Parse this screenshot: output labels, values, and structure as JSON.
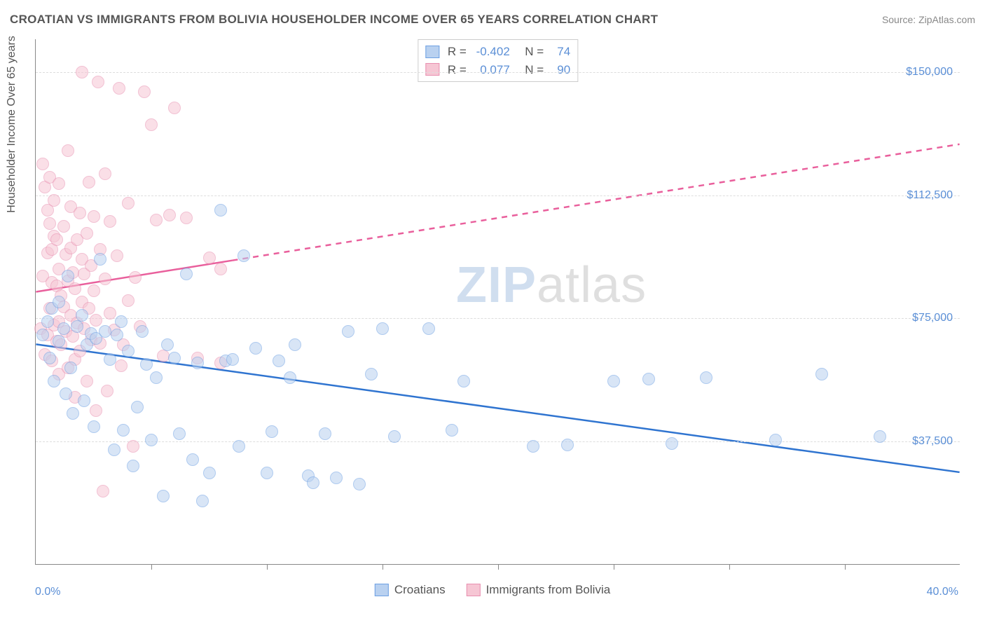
{
  "header": {
    "title": "CROATIAN VS IMMIGRANTS FROM BOLIVIA HOUSEHOLDER INCOME OVER 65 YEARS CORRELATION CHART",
    "source": "Source: ZipAtlas.com"
  },
  "chart": {
    "type": "scatter",
    "yaxis_title": "Householder Income Over 65 years",
    "xlim": [
      0,
      40
    ],
    "ylim": [
      0,
      160000
    ],
    "xaxis_min_label": "0.0%",
    "xaxis_max_label": "40.0%",
    "yticks": [
      {
        "v": 37500,
        "label": "$37,500"
      },
      {
        "v": 75000,
        "label": "$75,000"
      },
      {
        "v": 112500,
        "label": "$112,500"
      },
      {
        "v": 150000,
        "label": "$150,000"
      }
    ],
    "xtick_positions": [
      5,
      10,
      15,
      20,
      25,
      30,
      35
    ],
    "grid_color": "#dddddd",
    "axis_color": "#888888",
    "background_color": "#ffffff",
    "point_radius": 9,
    "point_opacity": 0.55,
    "trend_line_width": 2.5,
    "series": [
      {
        "name": "Croatians",
        "fill": "#b9d1f0",
        "stroke": "#6da0e3",
        "trend_color": "#2f74d0",
        "R": "-0.402",
        "N": "74",
        "trend": {
          "x1": 0,
          "y1": 67000,
          "x2": 40,
          "y2": 28000,
          "dash": false,
          "dash_from_x": null
        },
        "points": [
          [
            0.3,
            70000
          ],
          [
            0.5,
            74000
          ],
          [
            0.6,
            63000
          ],
          [
            0.7,
            78000
          ],
          [
            0.8,
            56000
          ],
          [
            1.0,
            68000
          ],
          [
            1.0,
            80000
          ],
          [
            1.2,
            72000
          ],
          [
            1.3,
            52000
          ],
          [
            1.4,
            88000
          ],
          [
            1.5,
            60000
          ],
          [
            1.6,
            46000
          ],
          [
            1.8,
            72500
          ],
          [
            2.0,
            76000
          ],
          [
            2.1,
            50000
          ],
          [
            2.2,
            67000
          ],
          [
            2.4,
            70500
          ],
          [
            2.5,
            42000
          ],
          [
            2.6,
            69000
          ],
          [
            2.8,
            93000
          ],
          [
            3.0,
            71000
          ],
          [
            3.2,
            62500
          ],
          [
            3.4,
            35000
          ],
          [
            3.5,
            70000
          ],
          [
            3.7,
            74000
          ],
          [
            3.8,
            41000
          ],
          [
            4.0,
            65000
          ],
          [
            4.2,
            30000
          ],
          [
            4.4,
            48000
          ],
          [
            4.6,
            71000
          ],
          [
            4.8,
            61000
          ],
          [
            5.0,
            38000
          ],
          [
            5.2,
            57000
          ],
          [
            5.5,
            21000
          ],
          [
            5.7,
            67000
          ],
          [
            6.0,
            63000
          ],
          [
            6.2,
            40000
          ],
          [
            6.5,
            88500
          ],
          [
            6.8,
            32000
          ],
          [
            7.0,
            61500
          ],
          [
            7.2,
            19500
          ],
          [
            7.5,
            28000
          ],
          [
            8.0,
            108000
          ],
          [
            8.2,
            62000
          ],
          [
            8.5,
            62500
          ],
          [
            8.8,
            36000
          ],
          [
            9.0,
            94000
          ],
          [
            9.5,
            66000
          ],
          [
            10.0,
            28000
          ],
          [
            10.2,
            40500
          ],
          [
            10.5,
            62000
          ],
          [
            11.0,
            57000
          ],
          [
            11.2,
            67000
          ],
          [
            11.8,
            27000
          ],
          [
            12.0,
            25000
          ],
          [
            12.5,
            40000
          ],
          [
            13.0,
            26500
          ],
          [
            13.5,
            71000
          ],
          [
            14.0,
            24500
          ],
          [
            14.5,
            58000
          ],
          [
            15.0,
            72000
          ],
          [
            15.5,
            39000
          ],
          [
            17.0,
            72000
          ],
          [
            18.0,
            41000
          ],
          [
            18.5,
            56000
          ],
          [
            21.5,
            36000
          ],
          [
            23.0,
            36500
          ],
          [
            25.0,
            56000
          ],
          [
            26.5,
            56500
          ],
          [
            27.5,
            37000
          ],
          [
            29.0,
            57000
          ],
          [
            32.0,
            38000
          ],
          [
            34.0,
            58000
          ],
          [
            36.5,
            39000
          ]
        ]
      },
      {
        "name": "Immigrants from Bolivia",
        "fill": "#f6c6d4",
        "stroke": "#e88fb0",
        "trend_color": "#e95f9c",
        "R": "0.077",
        "N": "90",
        "trend": {
          "x1": 0,
          "y1": 83000,
          "x2": 40,
          "y2": 128000,
          "dash": true,
          "dash_from_x": 8.5
        },
        "points": [
          [
            0.2,
            72000
          ],
          [
            0.3,
            88000
          ],
          [
            0.3,
            122000
          ],
          [
            0.4,
            64000
          ],
          [
            0.4,
            115000
          ],
          [
            0.5,
            70000
          ],
          [
            0.5,
            95000
          ],
          [
            0.5,
            108000
          ],
          [
            0.6,
            78000
          ],
          [
            0.6,
            104000
          ],
          [
            0.6,
            118000
          ],
          [
            0.7,
            62000
          ],
          [
            0.7,
            86000
          ],
          [
            0.7,
            96000
          ],
          [
            0.8,
            73000
          ],
          [
            0.8,
            100000
          ],
          [
            0.8,
            111000
          ],
          [
            0.9,
            68000
          ],
          [
            0.9,
            85000
          ],
          [
            0.9,
            99000
          ],
          [
            1.0,
            58000
          ],
          [
            1.0,
            74000
          ],
          [
            1.0,
            90000
          ],
          [
            1.0,
            116000
          ],
          [
            1.1,
            82000
          ],
          [
            1.1,
            67000
          ],
          [
            1.2,
            78500
          ],
          [
            1.2,
            103000
          ],
          [
            1.3,
            71000
          ],
          [
            1.3,
            94500
          ],
          [
            1.4,
            60000
          ],
          [
            1.4,
            86500
          ],
          [
            1.4,
            126000
          ],
          [
            1.5,
            76000
          ],
          [
            1.5,
            96500
          ],
          [
            1.5,
            109000
          ],
          [
            1.6,
            69500
          ],
          [
            1.6,
            89000
          ],
          [
            1.7,
            62500
          ],
          [
            1.7,
            84000
          ],
          [
            1.7,
            51000
          ],
          [
            1.8,
            99000
          ],
          [
            1.8,
            73500
          ],
          [
            1.9,
            107000
          ],
          [
            1.9,
            65000
          ],
          [
            2.0,
            80000
          ],
          [
            2.0,
            93000
          ],
          [
            2.0,
            150000
          ],
          [
            2.1,
            72000
          ],
          [
            2.1,
            88500
          ],
          [
            2.2,
            56000
          ],
          [
            2.2,
            101000
          ],
          [
            2.3,
            78000
          ],
          [
            2.3,
            116500
          ],
          [
            2.4,
            68500
          ],
          [
            2.4,
            91000
          ],
          [
            2.5,
            83500
          ],
          [
            2.5,
            106000
          ],
          [
            2.6,
            47000
          ],
          [
            2.6,
            74500
          ],
          [
            2.7,
            147000
          ],
          [
            2.8,
            96000
          ],
          [
            2.8,
            67500
          ],
          [
            2.9,
            22500
          ],
          [
            3.0,
            87000
          ],
          [
            3.0,
            119000
          ],
          [
            3.1,
            53000
          ],
          [
            3.2,
            76500
          ],
          [
            3.2,
            104500
          ],
          [
            3.4,
            71500
          ],
          [
            3.5,
            94000
          ],
          [
            3.6,
            145000
          ],
          [
            3.7,
            60500
          ],
          [
            3.8,
            67000
          ],
          [
            4.0,
            80500
          ],
          [
            4.0,
            110000
          ],
          [
            4.2,
            36000
          ],
          [
            4.3,
            87500
          ],
          [
            4.5,
            72500
          ],
          [
            4.7,
            144000
          ],
          [
            5.0,
            134000
          ],
          [
            5.2,
            105000
          ],
          [
            5.5,
            63500
          ],
          [
            5.8,
            106500
          ],
          [
            6.0,
            139000
          ],
          [
            6.5,
            105500
          ],
          [
            7.0,
            63000
          ],
          [
            7.5,
            93500
          ],
          [
            8.0,
            61500
          ],
          [
            8.0,
            90000
          ]
        ]
      }
    ]
  },
  "legend_bottom": {
    "items": [
      "Croatians",
      "Immigrants from Bolivia"
    ]
  },
  "watermark": {
    "part1": "ZIP",
    "part2": "atlas"
  }
}
